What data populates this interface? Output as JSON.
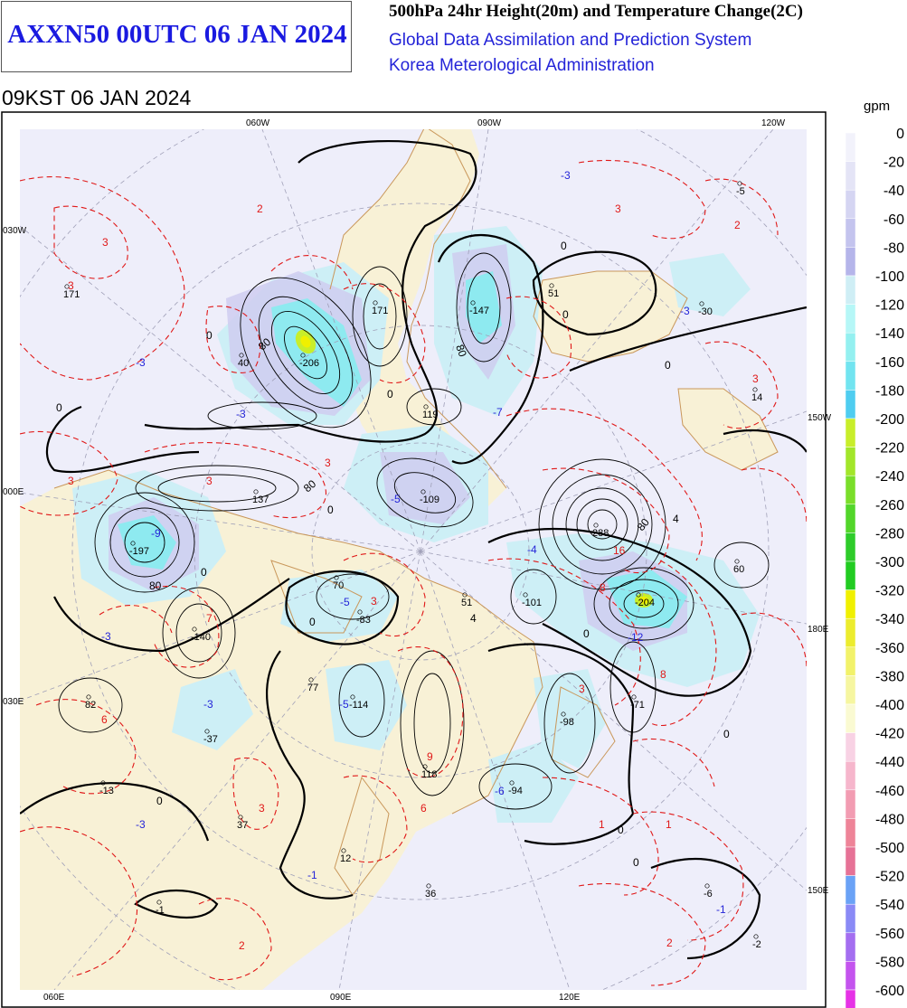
{
  "header": {
    "main_title": "AXXN50 00UTC 06 JAN 2024",
    "product_title": "500hPa 24hr Height(20m) and Temperature Change(2C)",
    "org_line1": "Global Data Assimilation and Prediction System",
    "org_line2": "Korea Meterological Administration",
    "valid_time": "09KST 06 JAN 2024"
  },
  "map": {
    "top_meridian_labels": [
      "060W",
      "090W",
      "120W"
    ],
    "bottom_meridian_labels": [
      "060E",
      "090E",
      "120E"
    ],
    "left_labels": [
      "030W",
      "000E",
      "030E"
    ],
    "right_labels": [
      "150W",
      "180E",
      "150E"
    ],
    "height_centers": [
      {
        "value": "171"
      },
      {
        "value": "40"
      },
      {
        "value": "-206"
      },
      {
        "value": "171"
      },
      {
        "value": "-147"
      },
      {
        "value": "51"
      },
      {
        "value": "-30"
      },
      {
        "value": "-5"
      },
      {
        "value": "14"
      },
      {
        "value": "119"
      },
      {
        "value": "137"
      },
      {
        "value": "-109"
      },
      {
        "value": "-197"
      },
      {
        "value": "288"
      },
      {
        "value": "60"
      },
      {
        "value": "70"
      },
      {
        "value": "51"
      },
      {
        "value": "-101"
      },
      {
        "value": "-204"
      },
      {
        "value": "-83"
      },
      {
        "value": "-140"
      },
      {
        "value": "77"
      },
      {
        "value": "-114"
      },
      {
        "value": "82"
      },
      {
        "value": "-71"
      },
      {
        "value": "-98"
      },
      {
        "value": "-37"
      },
      {
        "value": "118"
      },
      {
        "value": "-13"
      },
      {
        "value": "-94"
      },
      {
        "value": "37"
      },
      {
        "value": "12"
      },
      {
        "value": "36"
      },
      {
        "value": "-1"
      },
      {
        "value": "-6"
      },
      {
        "value": "-2"
      }
    ],
    "temp_warm_labels": [
      "2",
      "3",
      "3",
      "3",
      "3",
      "3",
      "2",
      "3",
      "3",
      "6",
      "7",
      "16",
      "8",
      "8",
      "3",
      "3",
      "9",
      "6",
      "3",
      "2",
      "1",
      "1",
      "2"
    ],
    "temp_cold_labels": [
      "-3",
      "-3",
      "-3",
      "-5",
      "-7",
      "-9",
      "-3",
      "-5",
      "-5",
      "-3",
      "-4",
      "-12",
      "-3",
      "-6",
      "-3",
      "-1",
      "-1"
    ],
    "contour_labels": [
      "80",
      "0",
      "80",
      "0",
      "0",
      "0",
      "80",
      "0",
      "0",
      "80",
      "80",
      "0",
      "0",
      "0",
      "4",
      "4",
      "0",
      "0",
      "0",
      "0",
      "0"
    ]
  },
  "legend": {
    "unit": "gpm",
    "levels": [
      "0",
      "-20",
      "-40",
      "-60",
      "-80",
      "-100",
      "-120",
      "-140",
      "-160",
      "-180",
      "-200",
      "-220",
      "-240",
      "-260",
      "-280",
      "-300",
      "-320",
      "-340",
      "-360",
      "-380",
      "-400",
      "-420",
      "-440",
      "-460",
      "-480",
      "-500",
      "-520",
      "-540",
      "-560",
      "-580",
      "-600"
    ],
    "colors": [
      "#f2f2fb",
      "#e4e4f6",
      "#d5d5f2",
      "#c4c4ee",
      "#b5b5ea",
      "#cfeef5",
      "#b6f7f7",
      "#94f0f0",
      "#72e4f0",
      "#4fcdf0",
      "#c8ee2a",
      "#a2e62a",
      "#7ade2a",
      "#52d62a",
      "#2ecc2a",
      "#22cc22",
      "#f0f000",
      "#ecec2e",
      "#f2f26a",
      "#f6f6a0",
      "#fafad2",
      "#f8d2e4",
      "#f6b6cc",
      "#f29cb2",
      "#ee8498",
      "#e67296",
      "#6aa2f6",
      "#8a8af6",
      "#a46ef0",
      "#c454ee",
      "#e632e6"
    ]
  }
}
